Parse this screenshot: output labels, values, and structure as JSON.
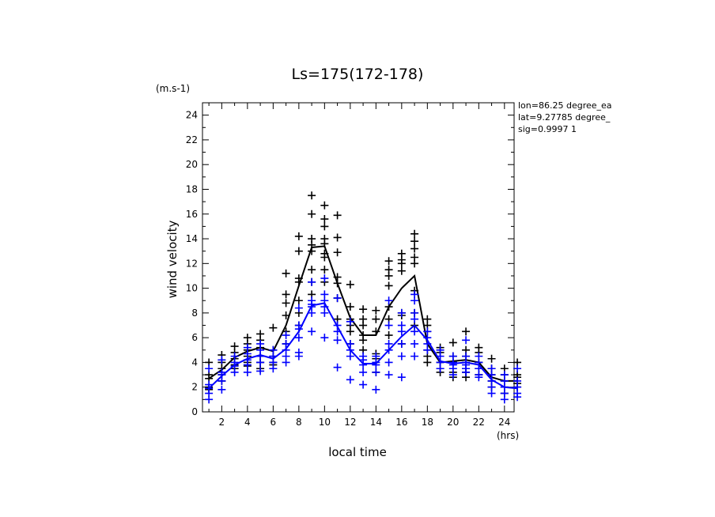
{
  "chart_data": {
    "type": "scatter",
    "title": "Ls=175(172-178)",
    "ylabel": "wind velocity",
    "ylabel_unit": "(m.s-1)",
    "xlabel": "local time",
    "xlabel_unit": "(hrs)",
    "xlim": [
      0.5,
      24.75
    ],
    "ylim": [
      0,
      25
    ],
    "xticks": [
      "2",
      "4",
      "6",
      "8",
      "10",
      "12",
      "14",
      "16",
      "18",
      "20",
      "22",
      "24"
    ],
    "yticks": [
      "0",
      "2",
      "4",
      "6",
      "8",
      "10",
      "12",
      "14",
      "16",
      "18",
      "20",
      "22",
      "24"
    ],
    "info": [
      "lon=86.25 degree_ea",
      "lat=9.27785 degree_",
      "sig=0.9997 1"
    ],
    "grid": false,
    "series": [
      {
        "color": "#000000",
        "mean_line": {
          "x": [
            1,
            2,
            3,
            4,
            5,
            6,
            7,
            8,
            9,
            10,
            11,
            12,
            13,
            14,
            15,
            16,
            17,
            18,
            19,
            20,
            21,
            22,
            23,
            24,
            25
          ],
          "y": [
            2.7,
            3.4,
            4.4,
            4.9,
            5.2,
            4.9,
            7.0,
            10.2,
            13.3,
            13.4,
            10.4,
            7.6,
            6.2,
            6.2,
            8.5,
            10.0,
            11.0,
            5.5,
            4.0,
            4.1,
            4.2,
            4.0,
            2.8,
            2.5,
            2.5
          ]
        },
        "points": {
          "x": [
            1,
            1,
            1,
            1,
            1,
            2,
            2,
            2,
            2,
            2,
            3,
            3,
            3,
            3,
            3,
            4,
            4,
            4,
            4,
            4,
            4,
            5,
            5,
            5,
            5,
            5,
            5,
            6,
            6,
            6,
            6,
            6,
            7,
            7,
            7,
            7,
            7,
            7,
            8,
            8,
            8,
            8,
            8,
            8,
            8,
            9,
            9,
            9,
            9,
            9,
            9,
            9,
            9,
            10,
            10,
            10,
            10,
            10,
            10,
            10,
            10,
            10,
            11,
            11,
            11,
            11,
            11,
            11,
            11,
            12,
            12,
            12,
            12,
            12,
            12,
            13,
            13,
            13,
            13,
            13,
            13,
            14,
            14,
            14,
            14,
            14,
            14,
            15,
            15,
            15,
            15,
            15,
            15,
            15,
            16,
            16,
            16,
            16,
            16,
            16,
            16,
            17,
            17,
            17,
            17,
            17,
            17,
            17,
            17,
            18,
            18,
            18,
            18,
            18,
            18,
            19,
            19,
            19,
            19,
            19,
            20,
            20,
            20,
            20,
            20,
            21,
            21,
            21,
            21,
            21,
            21,
            22,
            22,
            22,
            22,
            22,
            23,
            23,
            23,
            23,
            23,
            24,
            24,
            24,
            24,
            24,
            25,
            25,
            25,
            25,
            25
          ],
          "y": [
            4.0,
            3.0,
            2.7,
            2.0,
            1.8,
            4.6,
            4.0,
            3.5,
            3.0,
            2.5,
            5.3,
            4.8,
            4.3,
            3.8,
            3.5,
            6.0,
            5.5,
            5.0,
            4.5,
            4.0,
            3.7,
            6.3,
            5.8,
            5.2,
            4.5,
            4.0,
            3.5,
            6.8,
            5.0,
            4.5,
            4.0,
            3.8,
            11.2,
            9.5,
            8.8,
            7.8,
            6.5,
            5.5,
            14.2,
            13.0,
            10.8,
            10.5,
            9.0,
            8.0,
            7.0,
            17.5,
            16.0,
            14.0,
            13.5,
            13.0,
            11.5,
            10.5,
            9.5,
            16.7,
            15.6,
            15.0,
            14.0,
            13.6,
            12.8,
            12.5,
            11.5,
            10.5,
            15.9,
            14.1,
            12.9,
            10.9,
            10.4,
            9.2,
            7.5,
            10.3,
            8.5,
            7.5,
            7.0,
            6.5,
            5.5,
            8.3,
            7.5,
            7.0,
            6.2,
            5.8,
            5.0,
            8.2,
            7.5,
            6.5,
            4.7,
            4.3,
            3.2,
            12.2,
            11.5,
            11.0,
            10.2,
            8.5,
            7.5,
            6.2,
            12.8,
            12.3,
            12.0,
            11.4,
            8.0,
            7.8,
            5.5,
            14.4,
            13.8,
            13.2,
            12.5,
            12.0,
            9.8,
            8.0,
            7.0,
            7.5,
            7.0,
            6.5,
            5.0,
            4.5,
            4.0,
            5.2,
            4.8,
            4.0,
            3.5,
            3.2,
            5.6,
            4.5,
            4.0,
            3.2,
            2.8,
            6.5,
            5.0,
            4.5,
            3.5,
            3.2,
            2.8,
            5.2,
            4.8,
            4.0,
            3.5,
            3.0,
            4.3,
            3.5,
            3.0,
            2.5,
            2.0,
            3.5,
            3.0,
            2.5,
            2.0,
            1.5,
            4.0,
            3.0,
            2.8,
            2.3,
            2.0
          ]
        }
      },
      {
        "color": "#0000ff",
        "mean_line": {
          "x": [
            1,
            2,
            3,
            4,
            5,
            6,
            7,
            8,
            9,
            10,
            11,
            12,
            13,
            14,
            15,
            16,
            17,
            18,
            19,
            20,
            21,
            22,
            23,
            24,
            25
          ],
          "y": [
            1.9,
            2.9,
            3.8,
            4.3,
            4.6,
            4.3,
            5.1,
            6.5,
            8.6,
            8.8,
            6.9,
            5.0,
            3.9,
            3.9,
            5.0,
            6.1,
            7.0,
            5.8,
            4.1,
            3.9,
            4.0,
            3.8,
            2.6,
            2.0,
            1.9
          ]
        },
        "points": {
          "x": [
            1,
            1,
            1,
            1,
            1,
            2,
            2,
            2,
            2,
            2,
            3,
            3,
            3,
            3,
            4,
            4,
            4,
            4,
            4,
            5,
            5,
            5,
            5,
            5,
            6,
            6,
            6,
            6,
            7,
            7,
            7,
            7,
            7,
            8,
            8,
            8,
            8,
            8,
            8,
            9,
            9,
            9,
            9,
            9,
            9,
            10,
            10,
            10,
            10,
            10,
            10,
            11,
            11,
            11,
            11,
            11,
            12,
            12,
            12,
            12,
            12,
            13,
            13,
            13,
            13,
            13,
            14,
            14,
            14,
            14,
            14,
            15,
            15,
            15,
            15,
            15,
            15,
            16,
            16,
            16,
            16,
            16,
            16,
            17,
            17,
            17,
            17,
            17,
            17,
            17,
            18,
            18,
            18,
            18,
            19,
            19,
            19,
            19,
            20,
            20,
            20,
            20,
            20,
            21,
            21,
            21,
            21,
            21,
            21,
            22,
            22,
            22,
            22,
            22,
            23,
            23,
            23,
            23,
            23,
            24,
            24,
            24,
            24,
            24,
            25,
            25,
            25,
            25,
            25
          ],
          "y": [
            3.5,
            2.2,
            1.9,
            1.5,
            1.0,
            4.2,
            3.2,
            3.0,
            2.5,
            1.8,
            4.5,
            4.0,
            3.7,
            3.2,
            5.2,
            4.7,
            4.2,
            3.8,
            3.2,
            5.5,
            5.0,
            4.5,
            4.0,
            3.3,
            5.0,
            4.5,
            4.0,
            3.5,
            6.2,
            5.5,
            5.0,
            4.5,
            4.0,
            8.4,
            7.0,
            6.7,
            6.0,
            4.8,
            4.5,
            10.5,
            9.0,
            8.7,
            8.5,
            8.0,
            6.5,
            10.8,
            9.5,
            9.0,
            8.5,
            8.0,
            6.0,
            9.2,
            7.0,
            6.5,
            5.8,
            3.6,
            7.3,
            5.5,
            5.0,
            4.5,
            2.6,
            4.5,
            4.2,
            3.8,
            3.2,
            2.2,
            4.5,
            4.0,
            3.8,
            3.2,
            1.8,
            9.0,
            7.0,
            5.5,
            5.0,
            4.0,
            3.0,
            8.0,
            7.0,
            6.5,
            5.5,
            4.5,
            2.8,
            9.5,
            9.0,
            8.0,
            7.5,
            6.5,
            5.5,
            4.5,
            6.5,
            6.0,
            5.5,
            5.0,
            5.0,
            4.5,
            4.0,
            3.5,
            4.5,
            4.0,
            3.8,
            3.5,
            3.0,
            5.8,
            4.5,
            4.0,
            3.8,
            3.5,
            3.2,
            4.5,
            4.0,
            3.5,
            3.0,
            2.8,
            3.5,
            3.0,
            2.5,
            2.0,
            1.5,
            3.0,
            2.5,
            2.0,
            1.5,
            1.0,
            3.5,
            2.5,
            2.0,
            1.5,
            1.2
          ]
        }
      }
    ]
  }
}
